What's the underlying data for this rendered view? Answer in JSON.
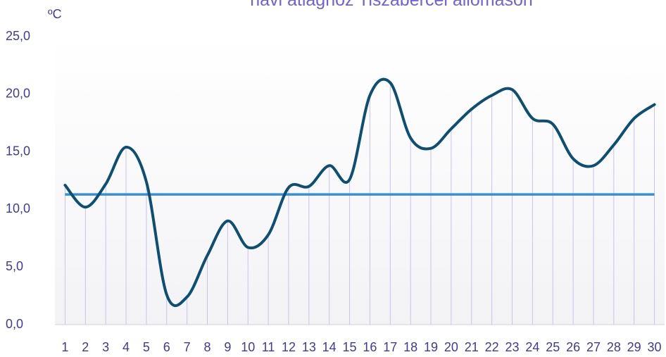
{
  "chart_data": {
    "type": "line",
    "title": "havi átlaghoz Tiszabercel állomáson",
    "y_unit": "ºC",
    "categories": [
      "1",
      "2",
      "3",
      "4",
      "5",
      "6",
      "7",
      "8",
      "9",
      "10",
      "11",
      "12",
      "13",
      "14",
      "15",
      "16",
      "17",
      "18",
      "19",
      "20",
      "21",
      "22",
      "23",
      "24",
      "25",
      "26",
      "27",
      "28",
      "29",
      "30"
    ],
    "values": [
      12.1,
      10.2,
      12.2,
      15.4,
      12.4,
      2.6,
      2.4,
      6.0,
      9.0,
      6.7,
      7.8,
      11.9,
      12.0,
      13.8,
      12.6,
      19.9,
      21.0,
      16.2,
      15.3,
      17.0,
      18.7,
      19.9,
      20.4,
      17.9,
      17.4,
      14.4,
      13.8,
      15.6,
      17.9,
      19.1
    ],
    "color": "#0d4f73",
    "reference_line": {
      "value": 11.3,
      "color": "#3a8fd0"
    },
    "ylim": [
      0,
      25
    ],
    "yticks": [
      {
        "value": 0,
        "label": "0,0"
      },
      {
        "value": 5,
        "label": "5,0"
      },
      {
        "value": 10,
        "label": "10,0"
      },
      {
        "value": 15,
        "label": "15,0"
      },
      {
        "value": 20,
        "label": "20,0"
      },
      {
        "value": 25,
        "label": "25,0"
      }
    ],
    "drop_lines": true
  }
}
